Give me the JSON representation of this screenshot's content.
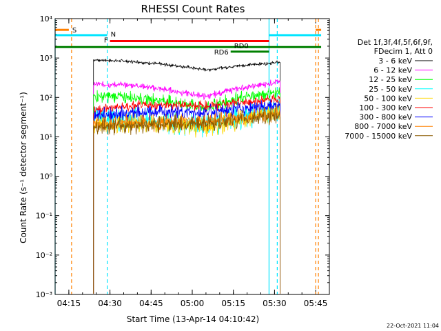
{
  "chart_data": {
    "type": "line",
    "title": "RHESSI Count Rates",
    "xlabel": "Start Time (13-Apr-14 04:10:42)",
    "ylabel": "Count Rate (s⁻¹ detector segment⁻¹)",
    "x_unit": "minutes",
    "xlim": [
      "04:10",
      "05:50"
    ],
    "ylim": [
      0.001,
      10000
    ],
    "yscale": "log",
    "x_ticks": [
      "04:15",
      "04:30",
      "04:45",
      "05:00",
      "05:15",
      "05:30",
      "05:45"
    ],
    "y_ticks": [
      "10⁻³",
      "10⁻²",
      "10⁻¹",
      "10⁰",
      "10¹",
      "10²",
      "10³",
      "10⁴"
    ],
    "data_window": [
      "04:24",
      "05:32"
    ],
    "legend_position": "right",
    "legend_header": [
      "Det 1f,3f,4f,5f,6f,9f,",
      "FDecim 1, Att 0"
    ],
    "series": [
      {
        "name": "3 - 6 keV",
        "color": "#000000",
        "x": [
          "04:24",
          "04:40",
          "04:55",
          "05:05",
          "05:15",
          "05:32"
        ],
        "y": [
          900,
          800,
          630,
          500,
          620,
          780
        ]
      },
      {
        "name": "6 - 12 keV",
        "color": "#ff00ff",
        "x": [
          "04:24",
          "04:40",
          "04:55",
          "05:05",
          "05:15",
          "05:32"
        ],
        "y": [
          220,
          200,
          140,
          105,
          160,
          250
        ]
      },
      {
        "name": "12 - 25 keV",
        "color": "#00ff00",
        "x": [
          "04:24",
          "04:40",
          "04:55",
          "05:05",
          "05:15",
          "05:32"
        ],
        "y": [
          110,
          100,
          75,
          55,
          90,
          140
        ]
      },
      {
        "name": "25 - 50 keV",
        "color": "#00ffff",
        "x": [
          "04:24",
          "04:40",
          "04:55",
          "05:05",
          "05:15",
          "05:32"
        ],
        "y": [
          30,
          28,
          24,
          19,
          28,
          50
        ]
      },
      {
        "name": "50 - 100 keV",
        "color": "#ffd700",
        "x": [
          "04:24",
          "04:40",
          "04:55",
          "05:05",
          "05:15",
          "05:32"
        ],
        "y": [
          20,
          22,
          20,
          17,
          25,
          45
        ]
      },
      {
        "name": "100 - 300 keV",
        "color": "#ff0000",
        "x": [
          "04:24",
          "04:40",
          "04:55",
          "05:05",
          "05:15",
          "05:32"
        ],
        "y": [
          50,
          60,
          65,
          60,
          70,
          90
        ]
      },
      {
        "name": "300 - 800 keV",
        "color": "#0000ff",
        "x": [
          "04:24",
          "04:40",
          "04:55",
          "05:05",
          "05:15",
          "05:32"
        ],
        "y": [
          35,
          40,
          43,
          40,
          50,
          65
        ]
      },
      {
        "name": "800 - 7000 keV",
        "color": "#ff8000",
        "x": [
          "04:24",
          "04:40",
          "04:55",
          "05:05",
          "05:15",
          "05:32"
        ],
        "y": [
          20,
          23,
          25,
          23,
          30,
          38
        ]
      },
      {
        "name": "7000 - 15000 keV",
        "color": "#8b5a00",
        "x": [
          "04:24",
          "04:40",
          "04:55",
          "05:05",
          "05:15",
          "05:32"
        ],
        "y": [
          18,
          20,
          22,
          21,
          27,
          34
        ]
      }
    ],
    "vlines": [
      {
        "x": "04:10",
        "color": "#00e5ff",
        "style": "solid"
      },
      {
        "x": "04:16",
        "color": "#ff8000",
        "style": "dashed"
      },
      {
        "x": "04:29",
        "color": "#00e5ff",
        "style": "dashed"
      },
      {
        "x": "05:28",
        "color": "#00e5ff",
        "style": "solid"
      },
      {
        "x": "05:31",
        "color": "#00e5ff",
        "style": "dashed"
      },
      {
        "x": "05:45",
        "color": "#ff8000",
        "style": "dashed"
      },
      {
        "x": "05:46",
        "color": "#ff8000",
        "style": "dashed"
      }
    ],
    "flag_bars": [
      {
        "label": "S",
        "color": "#ff8000",
        "segments": [
          [
            "04:10",
            "04:15"
          ],
          [
            "05:45",
            "05:47"
          ]
        ],
        "level": 5200
      },
      {
        "label": "N",
        "color": "#00e5ff",
        "segments": [
          [
            "04:10",
            "04:29"
          ],
          [
            "05:28",
            "05:47"
          ]
        ],
        "level": 3800
      },
      {
        "label": "F",
        "color": "#ff0000",
        "segments": [
          [
            "04:30",
            "05:28"
          ]
        ],
        "level": 2700
      },
      {
        "label": "RD0",
        "color": "#008000",
        "segments": [
          [
            "04:10",
            "05:47"
          ]
        ],
        "level": 1900
      },
      {
        "label": "RD6",
        "color": "#008000",
        "segments": [
          [
            "05:14",
            "05:28"
          ]
        ],
        "level": 1450
      }
    ]
  },
  "footer": {
    "timestamp": "22-Oct-2021 11:04"
  }
}
